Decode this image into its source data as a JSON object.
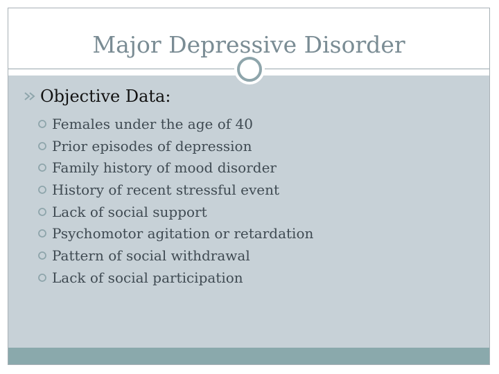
{
  "slide": {
    "title": "Major Depressive Disorder",
    "heading": "Objective Data:",
    "items": [
      "Females under the age of 40",
      "Prior episodes of depression",
      "Family history of mood disorder",
      "History of recent stressful event",
      "Lack of social support",
      "Psychomotor agitation or retardation",
      "Pattern of social withdrawal",
      "Lack of social participation"
    ]
  },
  "colors": {
    "title": "#7a8c94",
    "content_background": "#c7d1d7",
    "footer_bar": "#8aa9ac",
    "ring": "#8ea5ab",
    "heading_text": "#111111",
    "item_text": "#3f4a52"
  },
  "icons": {
    "heading_bullet": "double-chevron-bullet-icon",
    "item_bullet": "hollow-circle-bullet-icon",
    "divider_ornament": "ring-icon"
  }
}
